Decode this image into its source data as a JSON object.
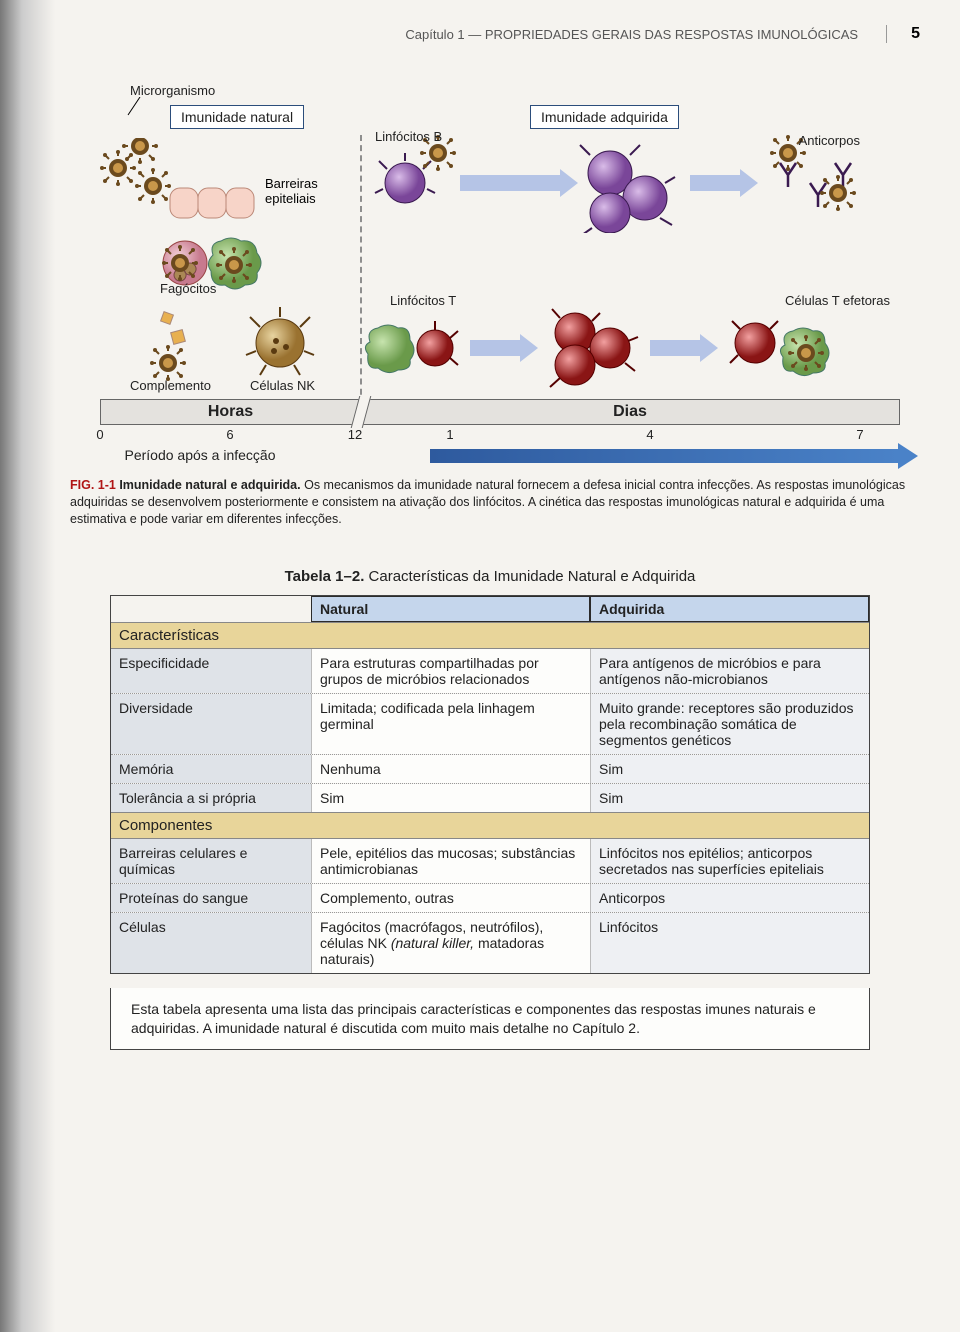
{
  "header": {
    "chapter": "Capítulo 1 — PROPRIEDADES GERAIS DAS RESPOSTAS IMUNOLÓGICAS",
    "page": "5"
  },
  "figure": {
    "labels": {
      "microorganism": "Microrganismo",
      "innate_box": "Imunidade natural",
      "acquired_box": "Imunidade adquirida",
      "epithelial": "Barreiras epiteliais",
      "b_lymph": "Linfócitos B",
      "antibodies": "Anticorpos",
      "phagocytes": "Fagócitos",
      "t_lymph": "Linfócitos T",
      "t_effector": "Células T efetoras",
      "complement": "Complemento",
      "nk": "Células NK"
    },
    "timeline": {
      "seg1": "Horas",
      "seg2": "Dias",
      "ticks": [
        {
          "pos": 0,
          "label": "0"
        },
        {
          "pos": 130,
          "label": "6"
        },
        {
          "pos": 255,
          "label": "12"
        },
        {
          "pos": 350,
          "label": "1"
        },
        {
          "pos": 550,
          "label": "4"
        },
        {
          "pos": 760,
          "label": "7"
        }
      ],
      "period": "Período após a infecção"
    },
    "caption_lead": "FIG. 1-1",
    "caption_bold": "Imunidade natural e adquirida.",
    "caption_text": "Os mecanismos da imunidade natural fornecem a defesa inicial contra infecções. As respostas imunológicas adquiridas se desenvolvem posteriormente e consistem na ativação dos linfócitos. A cinética das respostas imunológicas natural e adquirida é uma estimativa e pode variar em diferentes infecções."
  },
  "table": {
    "title_bold": "Tabela 1–2.",
    "title_rest": "Características da Imunidade Natural e Adquirida",
    "head_natural": "Natural",
    "head_acquired": "Adquirida",
    "section1": "Características",
    "rows1": [
      {
        "c0": "Especificidade",
        "c1": "Para estruturas compartilhadas por grupos de micróbios relacionados",
        "c2": "Para antígenos de micróbios e para antígenos não-microbianos"
      },
      {
        "c0": "Diversidade",
        "c1": "Limitada; codificada pela linhagem germinal",
        "c2": "Muito grande: receptores são produzidos pela recombinação somática de segmentos genéticos"
      },
      {
        "c0": "Memória",
        "c1": "Nenhuma",
        "c2": "Sim"
      },
      {
        "c0": "Tolerância a si própria",
        "c1": "Sim",
        "c2": "Sim"
      }
    ],
    "section2": "Componentes",
    "rows2": [
      {
        "c0": "Barreiras celulares e químicas",
        "c1": "Pele, epitélios das mucosas; substâncias antimicrobianas",
        "c2": "Linfócitos nos epitélios; anticorpos secretados nas superfícies epiteliais"
      },
      {
        "c0": "Proteínas do sangue",
        "c1": "Complemento, outras",
        "c2": "Anticorpos"
      },
      {
        "c0": "Células",
        "c1_html": "Fagócitos (macrófagos, neutrófilos), células NK <span class='italic'>(natural killer,</span> matadoras naturais)",
        "c2": "Linfócitos"
      }
    ],
    "footnote": "Esta tabela apresenta uma lista das principais características e componentes das respostas imunes naturais e adquiridas. A imunidade natural é discutida com muito mais detalhe no Capítulo 2."
  },
  "colors": {
    "microbe": "#6b4a1e",
    "microbe_hi": "#c9974a",
    "epithelium": "#f4c6b8",
    "bcell": "#8e5bb7",
    "bcell_hi": "#c9a8e0",
    "tcell": "#b02222",
    "tcell_hi": "#e86a6a",
    "nk": "#b58a3d",
    "nk_hi": "#e0c47a",
    "green": "#7aa85b",
    "green_hi": "#b3d79a",
    "neutro": "#d89aa6"
  }
}
